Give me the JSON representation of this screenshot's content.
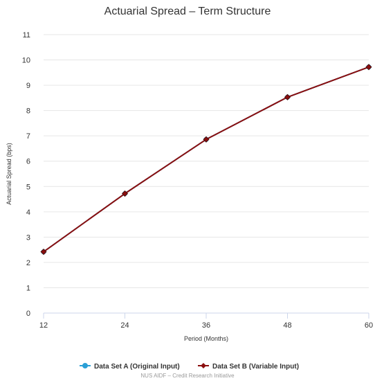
{
  "chart_data": {
    "type": "line",
    "title": "Actuarial Spread – Term Structure",
    "xlabel": "Period (Months)",
    "ylabel": "Actuarial Spread (bps)",
    "x": [
      12,
      24,
      36,
      48,
      60
    ],
    "x_ticks": [
      "12",
      "24",
      "36",
      "48",
      "60"
    ],
    "y_ticks": [
      "0",
      "1",
      "2",
      "3",
      "4",
      "5",
      "6",
      "7",
      "8",
      "9",
      "10",
      "11"
    ],
    "xlim": [
      12,
      60
    ],
    "ylim": [
      0,
      11
    ],
    "grid": "horizontal",
    "legend_position": "bottom-center",
    "series": [
      {
        "name": "Data Set A (Original Input)",
        "color": "#2a9fd6",
        "marker": "circle",
        "values": [
          2.42,
          4.72,
          6.86,
          8.53,
          9.72
        ]
      },
      {
        "name": "Data Set B (Variable Input)",
        "color": "#8b0e0e",
        "marker": "diamond",
        "values": [
          2.42,
          4.72,
          6.86,
          8.53,
          9.72
        ]
      }
    ]
  },
  "credit": "NUS AIDF – Credit Research Initiative"
}
